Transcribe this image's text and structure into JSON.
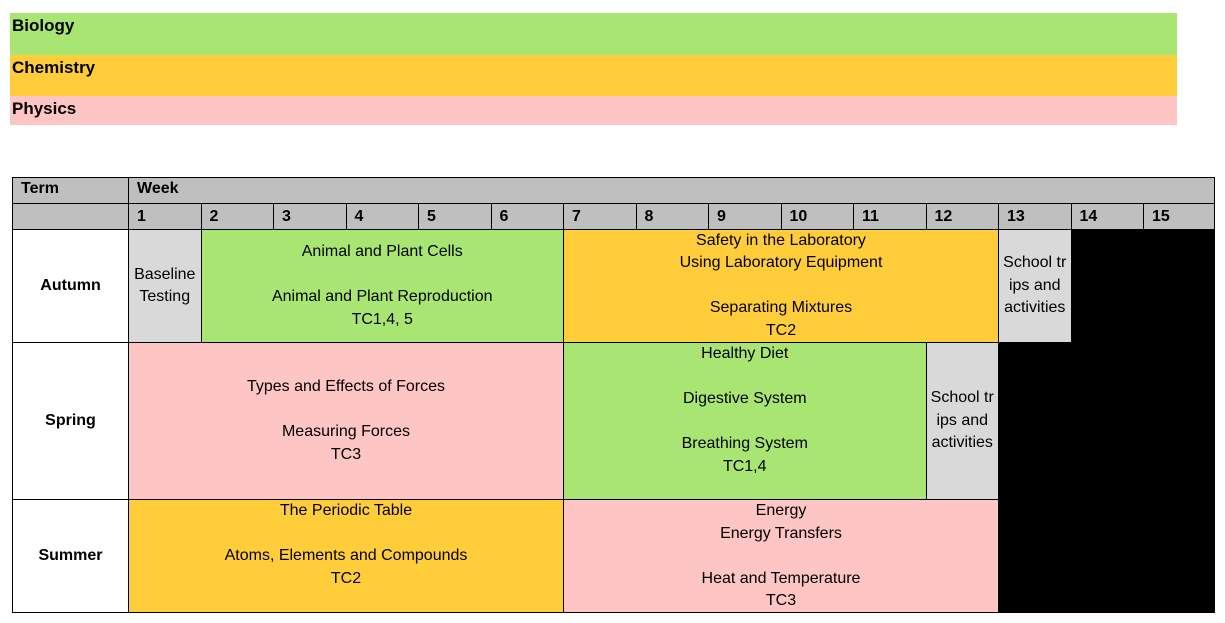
{
  "legend": {
    "biology": "Biology",
    "chemistry": "Chemistry",
    "physics": "Physics"
  },
  "colors": {
    "biology": "#a9e572",
    "chemistry": "#ffcd3a",
    "physics": "#fdc5c3",
    "other": "#d9d9d9",
    "header": "#bfbfbf",
    "empty": "#000000"
  },
  "table": {
    "term_header": "Term",
    "week_header": "Week",
    "weeks": [
      "1",
      "2",
      "3",
      "4",
      "5",
      "6",
      "7",
      "8",
      "9",
      "10",
      "11",
      "12",
      "13",
      "14",
      "15"
    ],
    "terms": {
      "autumn": "Autumn",
      "spring": "Spring",
      "summer": "Summer"
    },
    "autumn": {
      "baseline": "Baseline Testing",
      "cells": "Animal and Plant Cells\n\nAnimal and Plant Reproduction\nTC1,4, 5",
      "safety": "Safety in the Laboratory\nUsing Laboratory Equipment\n\nSeparating Mixtures\nTC2",
      "trips": "School trips and activities"
    },
    "spring": {
      "forces": "Types and Effects of Forces\n\nMeasuring Forces\nTC3",
      "diet": "Healthy Diet\n\nDigestive System\n\nBreathing System\nTC1,4",
      "trips": "School trips and activities"
    },
    "summer": {
      "periodic": "The Periodic Table\n\nAtoms, Elements and Compounds\nTC2",
      "energy": "Energy\nEnergy Transfers\n\nHeat and Temperature\nTC3"
    }
  }
}
